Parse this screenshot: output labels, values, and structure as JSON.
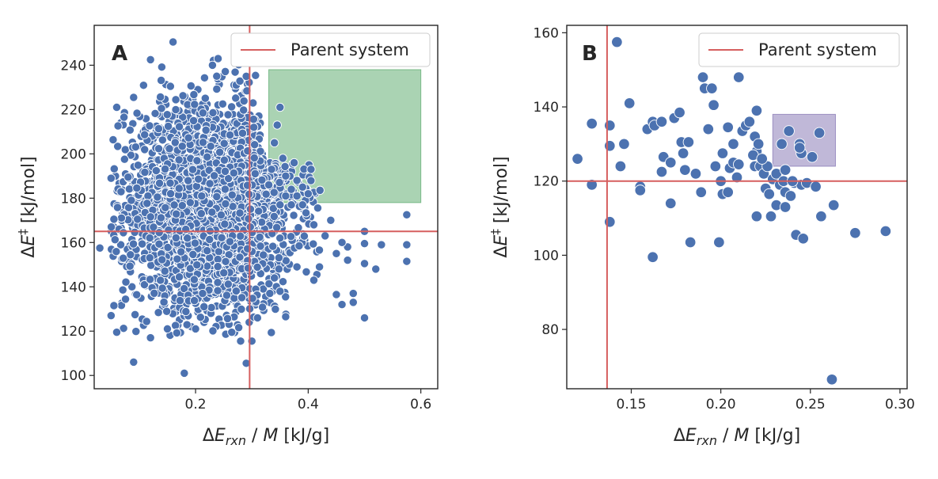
{
  "figure": {
    "panels": [
      "A",
      "B"
    ]
  },
  "chart_data": [
    {
      "type": "scatter",
      "panel_label": "A",
      "xlabel": "ΔE_rxn / M  [kJ/g]",
      "ylabel": "ΔE‡  [kJ/mol]",
      "xlim": [
        0.02,
        0.63
      ],
      "ylim": [
        94,
        258
      ],
      "xticks": [
        0.2,
        0.4,
        0.6
      ],
      "xtick_labels": [
        "0.2",
        "0.4",
        "0.6"
      ],
      "yticks": [
        100,
        120,
        140,
        160,
        180,
        200,
        220,
        240
      ],
      "ytick_labels": [
        "100",
        "120",
        "140",
        "160",
        "180",
        "200",
        "220",
        "240"
      ],
      "point_color": "#4c72b0",
      "parent_system": {
        "x": 0.296,
        "y": 165,
        "color": "#d65f5f",
        "legend": "Parent system"
      },
      "highlight_region": {
        "x": [
          0.33,
          0.6
        ],
        "y": [
          178,
          238
        ],
        "color": "#55a868"
      },
      "legend_position": "top-right",
      "cloud": {
        "description_count": 3000,
        "x_mean": 0.225,
        "x_sd": 0.075,
        "y_mean": 176,
        "y_sd": 23,
        "x_range": [
          0.05,
          0.43
        ],
        "y_range": [
          118,
          243
        ]
      },
      "points": [
        {
          "x": 0.16,
          "y": 250.5
        },
        {
          "x": 0.12,
          "y": 242.5
        },
        {
          "x": 0.24,
          "y": 243
        },
        {
          "x": 0.23,
          "y": 240
        },
        {
          "x": 0.06,
          "y": 221
        },
        {
          "x": 0.09,
          "y": 225.5
        },
        {
          "x": 0.29,
          "y": 235
        },
        {
          "x": 0.05,
          "y": 189
        },
        {
          "x": 0.055,
          "y": 170.5
        },
        {
          "x": 0.03,
          "y": 157.5
        },
        {
          "x": 0.05,
          "y": 127
        },
        {
          "x": 0.055,
          "y": 131.5
        },
        {
          "x": 0.06,
          "y": 119.5
        },
        {
          "x": 0.09,
          "y": 106
        },
        {
          "x": 0.18,
          "y": 101
        },
        {
          "x": 0.29,
          "y": 105.5
        },
        {
          "x": 0.28,
          "y": 115.5
        },
        {
          "x": 0.3,
          "y": 115.5
        },
        {
          "x": 0.31,
          "y": 126
        },
        {
          "x": 0.12,
          "y": 117
        },
        {
          "x": 0.15,
          "y": 121
        },
        {
          "x": 0.2,
          "y": 121
        },
        {
          "x": 0.36,
          "y": 126.5
        },
        {
          "x": 0.35,
          "y": 138
        },
        {
          "x": 0.34,
          "y": 144
        },
        {
          "x": 0.38,
          "y": 149
        },
        {
          "x": 0.42,
          "y": 149
        },
        {
          "x": 0.41,
          "y": 143
        },
        {
          "x": 0.45,
          "y": 136.5
        },
        {
          "x": 0.46,
          "y": 132
        },
        {
          "x": 0.48,
          "y": 137
        },
        {
          "x": 0.48,
          "y": 133
        },
        {
          "x": 0.5,
          "y": 126
        },
        {
          "x": 0.52,
          "y": 148
        },
        {
          "x": 0.5,
          "y": 150.5
        },
        {
          "x": 0.47,
          "y": 152
        },
        {
          "x": 0.45,
          "y": 155
        },
        {
          "x": 0.47,
          "y": 158
        },
        {
          "x": 0.5,
          "y": 159.5
        },
        {
          "x": 0.53,
          "y": 159
        },
        {
          "x": 0.5,
          "y": 165
        },
        {
          "x": 0.46,
          "y": 160
        },
        {
          "x": 0.43,
          "y": 163
        },
        {
          "x": 0.44,
          "y": 170
        },
        {
          "x": 0.41,
          "y": 168
        },
        {
          "x": 0.575,
          "y": 172.5
        },
        {
          "x": 0.575,
          "y": 159
        },
        {
          "x": 0.575,
          "y": 151.5
        },
        {
          "x": 0.405,
          "y": 193
        },
        {
          "x": 0.39,
          "y": 185
        },
        {
          "x": 0.395,
          "y": 179
        },
        {
          "x": 0.37,
          "y": 184
        },
        {
          "x": 0.36,
          "y": 190
        },
        {
          "x": 0.355,
          "y": 198
        },
        {
          "x": 0.345,
          "y": 213
        },
        {
          "x": 0.35,
          "y": 221
        },
        {
          "x": 0.34,
          "y": 205
        },
        {
          "x": 0.375,
          "y": 196
        },
        {
          "x": 0.38,
          "y": 188
        },
        {
          "x": 0.4,
          "y": 182
        },
        {
          "x": 0.33,
          "y": 186
        },
        {
          "x": 0.335,
          "y": 193
        },
        {
          "x": 0.36,
          "y": 181
        },
        {
          "x": 0.38,
          "y": 181
        },
        {
          "x": 0.37,
          "y": 177
        },
        {
          "x": 0.35,
          "y": 177
        },
        {
          "x": 0.39,
          "y": 177
        }
      ]
    },
    {
      "type": "scatter",
      "panel_label": "B",
      "xlabel": "ΔE_rxn / M  [kJ/g]",
      "ylabel": "ΔE‡  [kJ/mol]",
      "xlim": [
        0.114,
        0.304
      ],
      "ylim": [
        64,
        162
      ],
      "xticks": [
        0.15,
        0.2,
        0.25,
        0.3
      ],
      "xtick_labels": [
        "0.15",
        "0.20",
        "0.25",
        "0.30"
      ],
      "yticks": [
        80,
        100,
        120,
        140,
        160
      ],
      "ytick_labels": [
        "80",
        "100",
        "120",
        "140",
        "160"
      ],
      "point_color": "#4c72b0",
      "parent_system": {
        "x": 0.1365,
        "y": 120,
        "color": "#d65f5f",
        "legend": "Parent system"
      },
      "highlight_region": {
        "x": [
          0.229,
          0.264
        ],
        "y": [
          124,
          138
        ],
        "color": "#8172b2"
      },
      "legend_position": "top-right",
      "points": [
        {
          "x": 0.142,
          "y": 157.5
        },
        {
          "x": 0.12,
          "y": 126
        },
        {
          "x": 0.128,
          "y": 135.5
        },
        {
          "x": 0.128,
          "y": 119
        },
        {
          "x": 0.138,
          "y": 135
        },
        {
          "x": 0.138,
          "y": 129.5
        },
        {
          "x": 0.144,
          "y": 124
        },
        {
          "x": 0.146,
          "y": 130
        },
        {
          "x": 0.149,
          "y": 141
        },
        {
          "x": 0.138,
          "y": 109
        },
        {
          "x": 0.155,
          "y": 118.5
        },
        {
          "x": 0.155,
          "y": 117.5
        },
        {
          "x": 0.159,
          "y": 134
        },
        {
          "x": 0.162,
          "y": 136
        },
        {
          "x": 0.163,
          "y": 135
        },
        {
          "x": 0.167,
          "y": 136
        },
        {
          "x": 0.167,
          "y": 122.5
        },
        {
          "x": 0.168,
          "y": 126.5
        },
        {
          "x": 0.172,
          "y": 125
        },
        {
          "x": 0.174,
          "y": 137
        },
        {
          "x": 0.177,
          "y": 138.5
        },
        {
          "x": 0.178,
          "y": 130.5
        },
        {
          "x": 0.182,
          "y": 130.5
        },
        {
          "x": 0.179,
          "y": 127.5
        },
        {
          "x": 0.18,
          "y": 123
        },
        {
          "x": 0.186,
          "y": 122
        },
        {
          "x": 0.172,
          "y": 114
        },
        {
          "x": 0.183,
          "y": 103.5
        },
        {
          "x": 0.162,
          "y": 99.5
        },
        {
          "x": 0.199,
          "y": 103.5
        },
        {
          "x": 0.19,
          "y": 148
        },
        {
          "x": 0.191,
          "y": 145
        },
        {
          "x": 0.195,
          "y": 145
        },
        {
          "x": 0.196,
          "y": 140.5
        },
        {
          "x": 0.193,
          "y": 134
        },
        {
          "x": 0.189,
          "y": 117
        },
        {
          "x": 0.197,
          "y": 124
        },
        {
          "x": 0.201,
          "y": 127.5
        },
        {
          "x": 0.2,
          "y": 120
        },
        {
          "x": 0.201,
          "y": 116.5
        },
        {
          "x": 0.204,
          "y": 117
        },
        {
          "x": 0.205,
          "y": 123.5
        },
        {
          "x": 0.207,
          "y": 125
        },
        {
          "x": 0.209,
          "y": 121
        },
        {
          "x": 0.21,
          "y": 124.5
        },
        {
          "x": 0.204,
          "y": 134.5
        },
        {
          "x": 0.207,
          "y": 130
        },
        {
          "x": 0.21,
          "y": 148
        },
        {
          "x": 0.212,
          "y": 133.5
        },
        {
          "x": 0.214,
          "y": 135
        },
        {
          "x": 0.216,
          "y": 136
        },
        {
          "x": 0.22,
          "y": 139
        },
        {
          "x": 0.219,
          "y": 132
        },
        {
          "x": 0.22,
          "y": 128
        },
        {
          "x": 0.218,
          "y": 127
        },
        {
          "x": 0.221,
          "y": 130
        },
        {
          "x": 0.219,
          "y": 124
        },
        {
          "x": 0.222,
          "y": 124
        },
        {
          "x": 0.224,
          "y": 122
        },
        {
          "x": 0.226,
          "y": 124
        },
        {
          "x": 0.225,
          "y": 118
        },
        {
          "x": 0.227,
          "y": 116.5
        },
        {
          "x": 0.229,
          "y": 120.5
        },
        {
          "x": 0.231,
          "y": 122
        },
        {
          "x": 0.233,
          "y": 119
        },
        {
          "x": 0.235,
          "y": 120
        },
        {
          "x": 0.228,
          "y": 110.5
        },
        {
          "x": 0.231,
          "y": 113.5
        },
        {
          "x": 0.236,
          "y": 113
        },
        {
          "x": 0.22,
          "y": 110.5
        },
        {
          "x": 0.236,
          "y": 117
        },
        {
          "x": 0.239,
          "y": 116
        },
        {
          "x": 0.241,
          "y": 119.5
        },
        {
          "x": 0.245,
          "y": 119
        },
        {
          "x": 0.248,
          "y": 119.5
        },
        {
          "x": 0.253,
          "y": 118.5
        },
        {
          "x": 0.234,
          "y": 130
        },
        {
          "x": 0.238,
          "y": 133.5
        },
        {
          "x": 0.244,
          "y": 130
        },
        {
          "x": 0.245,
          "y": 127.5
        },
        {
          "x": 0.244,
          "y": 129
        },
        {
          "x": 0.251,
          "y": 126.5
        },
        {
          "x": 0.255,
          "y": 133
        },
        {
          "x": 0.236,
          "y": 123
        },
        {
          "x": 0.242,
          "y": 105.5
        },
        {
          "x": 0.246,
          "y": 104.5
        },
        {
          "x": 0.256,
          "y": 110.5
        },
        {
          "x": 0.263,
          "y": 113.5
        },
        {
          "x": 0.275,
          "y": 106
        },
        {
          "x": 0.292,
          "y": 106.5
        },
        {
          "x": 0.262,
          "y": 66.5
        },
        {
          "x": 0.24,
          "y": 120
        },
        {
          "x": 0.223,
          "y": 126
        }
      ]
    }
  ]
}
